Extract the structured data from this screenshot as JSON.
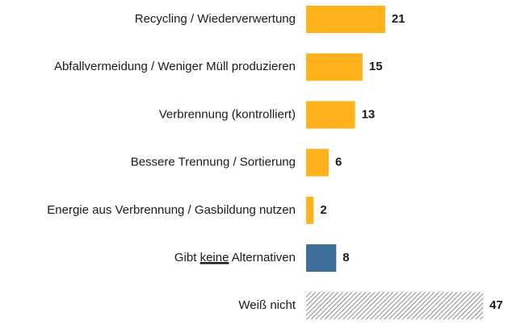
{
  "chart_data": {
    "type": "bar",
    "orientation": "horizontal",
    "categories": [
      "Recycling / Wiederverwertung",
      "Abfallvermeidung / Weniger Müll produzieren",
      "Verbrennung (kontrolliert)",
      "Bessere Trennung / Sortierung",
      "Energie aus Verbrennung / Gasbildung nutzen",
      "Gibt keine Alternativen",
      "Weiß nicht"
    ],
    "values": [
      21,
      15,
      13,
      6,
      2,
      8,
      47
    ],
    "data_labels": [
      "21",
      "15",
      "13",
      "6",
      "2",
      "8",
      "47"
    ],
    "emphasized_word": "keine",
    "colors": {
      "alternative": "#FFB21B",
      "none": "#3C6E98",
      "unknown": "#7F7F7F"
    },
    "bar_styles": [
      "alternative",
      "alternative",
      "alternative",
      "alternative",
      "alternative",
      "none",
      "unknown"
    ],
    "hatched": [
      false,
      false,
      false,
      false,
      false,
      false,
      true
    ],
    "grid": false,
    "legend": "none",
    "axes_visible": false,
    "xlim": [
      0,
      47
    ]
  }
}
